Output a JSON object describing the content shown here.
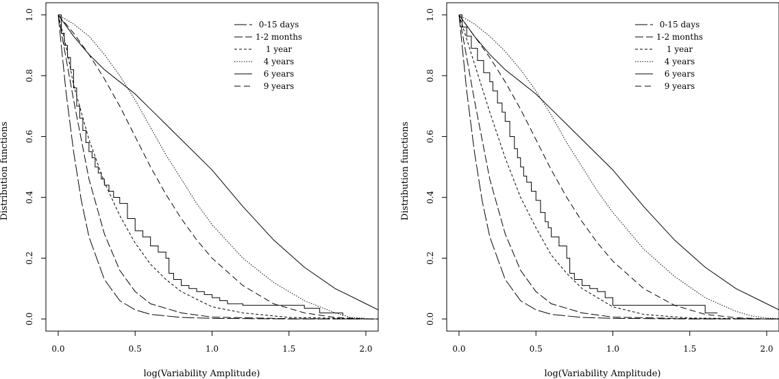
{
  "chart_data": [
    {
      "type": "line",
      "title": "",
      "xlabel": "log(Variability Amplitude)",
      "ylabel": "Distribution functions",
      "xlim": [
        -0.08,
        2.08
      ],
      "ylim": [
        -0.04,
        1.04
      ],
      "x_ticks": [
        0.0,
        0.5,
        1.0,
        1.5,
        2.0
      ],
      "x_tick_labels": [
        "0.0",
        "0.5",
        "1.0",
        "1.5",
        "2.0"
      ],
      "y_ticks": [
        0.0,
        0.2,
        0.4,
        0.6,
        0.8,
        1.0
      ],
      "y_tick_labels": [
        "0.0",
        "0.2",
        "0.4",
        "0.6",
        "0.8",
        "1.0"
      ],
      "grid": false,
      "legend_position": "top-right",
      "series": [
        {
          "name": "0-15 days",
          "step": false,
          "x": [
            0,
            0.05,
            0.1,
            0.15,
            0.2,
            0.3,
            0.4,
            0.5,
            0.6,
            0.8,
            1.0,
            1.5,
            2.08
          ],
          "y": [
            1.0,
            0.75,
            0.55,
            0.39,
            0.27,
            0.13,
            0.06,
            0.03,
            0.015,
            0.005,
            0.002,
            0.0,
            0.0
          ]
        },
        {
          "name": "1-2 months",
          "step": false,
          "x": [
            0,
            0.1,
            0.2,
            0.3,
            0.4,
            0.5,
            0.6,
            0.8,
            1.0,
            1.5,
            2.08
          ],
          "y": [
            1.0,
            0.72,
            0.46,
            0.28,
            0.16,
            0.09,
            0.05,
            0.02,
            0.006,
            0.001,
            0.0
          ]
        },
        {
          "name": "1 year",
          "step": false,
          "x": [
            0,
            0.05,
            0.1,
            0.2,
            0.3,
            0.4,
            0.5,
            0.6,
            0.7,
            0.8,
            1.0,
            1.2,
            1.5,
            2.08
          ],
          "y": [
            1.0,
            0.9,
            0.77,
            0.59,
            0.45,
            0.34,
            0.25,
            0.18,
            0.13,
            0.09,
            0.04,
            0.02,
            0.005,
            0.0
          ]
        },
        {
          "name": "4 years",
          "step": false,
          "x": [
            0,
            0.1,
            0.2,
            0.3,
            0.4,
            0.5,
            0.6,
            0.7,
            0.8,
            0.9,
            1.0,
            1.2,
            1.4,
            1.6,
            1.8,
            1.9,
            2.0
          ],
          "y": [
            1.0,
            0.97,
            0.93,
            0.87,
            0.8,
            0.72,
            0.63,
            0.54,
            0.46,
            0.38,
            0.31,
            0.2,
            0.12,
            0.06,
            0.02,
            0.005,
            0.002
          ]
        },
        {
          "name": "6 years",
          "step": false,
          "x": [
            0,
            0.1,
            0.2,
            0.3,
            0.4,
            0.5,
            0.6,
            0.7,
            0.8,
            1.0,
            1.2,
            1.4,
            1.6,
            1.8,
            2.0,
            2.08
          ],
          "y": [
            1.0,
            0.93,
            0.87,
            0.82,
            0.78,
            0.74,
            0.69,
            0.64,
            0.59,
            0.49,
            0.37,
            0.26,
            0.17,
            0.1,
            0.05,
            0.03
          ]
        },
        {
          "name": "9 years",
          "step": false,
          "x": [
            0,
            0.1,
            0.2,
            0.3,
            0.4,
            0.5,
            0.6,
            0.7,
            0.8,
            0.9,
            1.0,
            1.2,
            1.4,
            1.6,
            1.8,
            2.0
          ],
          "y": [
            1.0,
            0.94,
            0.87,
            0.79,
            0.7,
            0.6,
            0.5,
            0.41,
            0.33,
            0.26,
            0.2,
            0.11,
            0.05,
            0.02,
            0.005,
            0.0
          ]
        },
        {
          "name": "",
          "step": true,
          "x": [
            0,
            0.02,
            0.04,
            0.06,
            0.08,
            0.1,
            0.12,
            0.14,
            0.16,
            0.18,
            0.2,
            0.22,
            0.24,
            0.26,
            0.28,
            0.3,
            0.33,
            0.36,
            0.4,
            0.45,
            0.5,
            0.55,
            0.6,
            0.65,
            0.7,
            0.72,
            0.75,
            0.8,
            0.85,
            0.9,
            0.95,
            1.0,
            1.05,
            1.1,
            1.2,
            1.3,
            1.4,
            1.5,
            1.6,
            1.7,
            1.85
          ],
          "y": [
            1.0,
            0.94,
            0.9,
            0.86,
            0.82,
            0.76,
            0.7,
            0.66,
            0.62,
            0.58,
            0.55,
            0.53,
            0.5,
            0.48,
            0.46,
            0.44,
            0.42,
            0.4,
            0.38,
            0.33,
            0.29,
            0.27,
            0.24,
            0.22,
            0.2,
            0.15,
            0.13,
            0.11,
            0.1,
            0.09,
            0.08,
            0.07,
            0.06,
            0.05,
            0.045,
            0.045,
            0.045,
            0.045,
            0.035,
            0.02,
            0.01
          ]
        }
      ]
    },
    {
      "type": "line",
      "title": "",
      "xlabel": "log(Variability Amplitude)",
      "ylabel": "Distribution functions",
      "xlim": [
        -0.08,
        2.08
      ],
      "ylim": [
        -0.04,
        1.04
      ],
      "x_ticks": [
        0.0,
        0.5,
        1.0,
        1.5,
        2.0
      ],
      "x_tick_labels": [
        "0.0",
        "0.5",
        "1.0",
        "1.5",
        "2.0"
      ],
      "y_ticks": [
        0.0,
        0.2,
        0.4,
        0.6,
        0.8,
        1.0
      ],
      "y_tick_labels": [
        "0.0",
        "0.2",
        "0.4",
        "0.6",
        "0.8",
        "1.0"
      ],
      "grid": false,
      "legend_position": "top-right",
      "series": [
        {
          "name": "0-15 days",
          "step": false,
          "x": [
            0,
            0.05,
            0.1,
            0.15,
            0.2,
            0.3,
            0.4,
            0.5,
            0.6,
            0.8,
            1.0,
            1.5,
            2.08
          ],
          "y": [
            1.0,
            0.75,
            0.55,
            0.39,
            0.27,
            0.13,
            0.06,
            0.03,
            0.015,
            0.005,
            0.002,
            0.0,
            0.0
          ]
        },
        {
          "name": "1-2 months",
          "step": false,
          "x": [
            0,
            0.1,
            0.2,
            0.3,
            0.4,
            0.5,
            0.6,
            0.8,
            1.0,
            1.5,
            2.08
          ],
          "y": [
            1.0,
            0.72,
            0.46,
            0.28,
            0.16,
            0.09,
            0.05,
            0.02,
            0.006,
            0.001,
            0.0
          ]
        },
        {
          "name": "1 year",
          "step": false,
          "x": [
            0,
            0.1,
            0.2,
            0.3,
            0.4,
            0.5,
            0.6,
            0.7,
            0.8,
            1.0,
            1.2,
            1.5,
            2.08
          ],
          "y": [
            1.0,
            0.84,
            0.68,
            0.53,
            0.4,
            0.3,
            0.21,
            0.15,
            0.1,
            0.04,
            0.015,
            0.003,
            0.0
          ]
        },
        {
          "name": "4 years",
          "step": false,
          "x": [
            0,
            0.1,
            0.2,
            0.3,
            0.4,
            0.5,
            0.6,
            0.7,
            0.8,
            0.9,
            1.0,
            1.2,
            1.4,
            1.6,
            1.8,
            1.9,
            2.0,
            2.08
          ],
          "y": [
            1.0,
            0.97,
            0.93,
            0.88,
            0.82,
            0.75,
            0.67,
            0.58,
            0.5,
            0.42,
            0.35,
            0.23,
            0.14,
            0.07,
            0.025,
            0.01,
            0.003,
            0.001
          ]
        },
        {
          "name": "6 years",
          "step": false,
          "x": [
            0,
            0.1,
            0.2,
            0.3,
            0.4,
            0.5,
            0.6,
            0.7,
            0.8,
            1.0,
            1.2,
            1.4,
            1.6,
            1.8,
            2.0,
            2.08
          ],
          "y": [
            1.0,
            0.93,
            0.87,
            0.82,
            0.78,
            0.74,
            0.69,
            0.64,
            0.59,
            0.49,
            0.37,
            0.26,
            0.17,
            0.1,
            0.05,
            0.03
          ]
        },
        {
          "name": "9 years",
          "step": false,
          "x": [
            0,
            0.1,
            0.2,
            0.3,
            0.4,
            0.5,
            0.6,
            0.7,
            0.8,
            0.9,
            1.0,
            1.2,
            1.4,
            1.6,
            1.8,
            2.0
          ],
          "y": [
            1.0,
            0.93,
            0.86,
            0.78,
            0.69,
            0.59,
            0.49,
            0.4,
            0.32,
            0.25,
            0.19,
            0.1,
            0.045,
            0.015,
            0.004,
            0.0
          ]
        },
        {
          "name": "",
          "step": true,
          "x": [
            0,
            0.02,
            0.05,
            0.08,
            0.12,
            0.16,
            0.2,
            0.22,
            0.25,
            0.28,
            0.3,
            0.33,
            0.36,
            0.38,
            0.4,
            0.42,
            0.44,
            0.47,
            0.5,
            0.53,
            0.56,
            0.58,
            0.6,
            0.65,
            0.7,
            0.72,
            0.75,
            0.8,
            0.85,
            0.9,
            0.95,
            1.0,
            1.1,
            1.2,
            1.4,
            1.6,
            1.68
          ],
          "y": [
            1.0,
            0.96,
            0.93,
            0.89,
            0.85,
            0.81,
            0.78,
            0.75,
            0.71,
            0.68,
            0.65,
            0.6,
            0.56,
            0.53,
            0.5,
            0.47,
            0.45,
            0.42,
            0.39,
            0.35,
            0.32,
            0.3,
            0.27,
            0.24,
            0.2,
            0.15,
            0.13,
            0.11,
            0.1,
            0.09,
            0.07,
            0.045,
            0.045,
            0.045,
            0.045,
            0.02,
            0.02
          ]
        }
      ]
    }
  ],
  "style": {
    "line_color": "#000000",
    "background": "#ffffff"
  }
}
